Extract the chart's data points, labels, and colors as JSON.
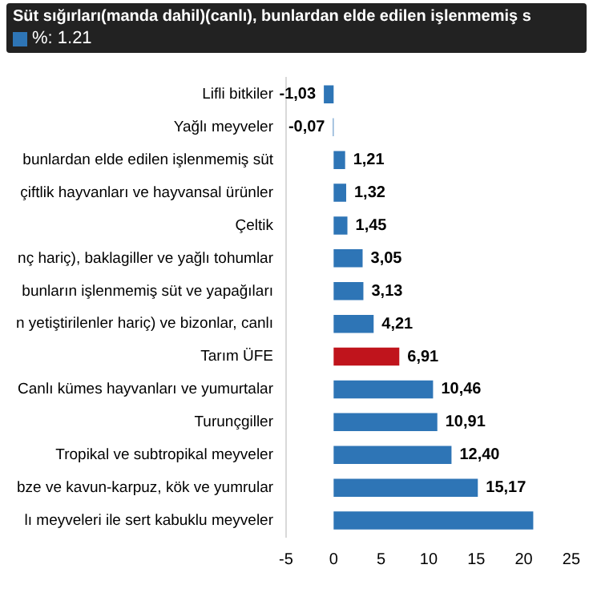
{
  "chart_data": {
    "type": "bar",
    "orientation": "horizontal",
    "categories": [
      "Lifli bitkiler",
      "Yağlı meyveler",
      "bunlardan elde edilen işlenmemiş süt",
      "çiftlik hayvanları ve hayvansal ürünler",
      "Çeltik",
      "nç hariç), baklagiller ve yağlı tohumlar",
      "bunların işlenmemiş süt ve yapağıları",
      "n yetiştirilenler hariç) ve bizonlar, canlı",
      "Tarım ÜFE",
      "Canlı kümes hayvanları ve yumurtalar",
      "Turunçgiller",
      "Tropikal ve subtropikal meyveler",
      "bze ve kavun-karpuz, kök ve yumrular",
      "lı meyveleri ile sert kabuklu meyveler"
    ],
    "series": [
      {
        "values": [
          -1.03,
          -0.07,
          1.21,
          1.32,
          1.45,
          3.05,
          3.13,
          4.21,
          6.91,
          10.46,
          10.91,
          12.4,
          15.17,
          21
        ],
        "colors": [
          "#2e75b6",
          "#2e75b6",
          "#2e75b6",
          "#2e75b6",
          "#2e75b6",
          "#2e75b6",
          "#2e75b6",
          "#2e75b6",
          "#c0141c",
          "#2e75b6",
          "#2e75b6",
          "#2e75b6",
          "#2e75b6",
          "#2e75b6"
        ],
        "value_labels": [
          "-1,03",
          "-0,07",
          "1,21",
          "1,32",
          "1,45",
          "3,05",
          "3,13",
          "4,21",
          "6,91",
          "10,46",
          "10,91",
          "12,40",
          "15,17",
          null
        ]
      }
    ],
    "xlim": [
      -5,
      25
    ],
    "xticks": [
      -5,
      0,
      5,
      10,
      15,
      20,
      25
    ],
    "annotations": [
      "Süt sığırları(manda dahil)(canlı), bunlardan elde edilen işlenmemiş s",
      "%: 1.21"
    ],
    "grid": false,
    "legend": false
  }
}
